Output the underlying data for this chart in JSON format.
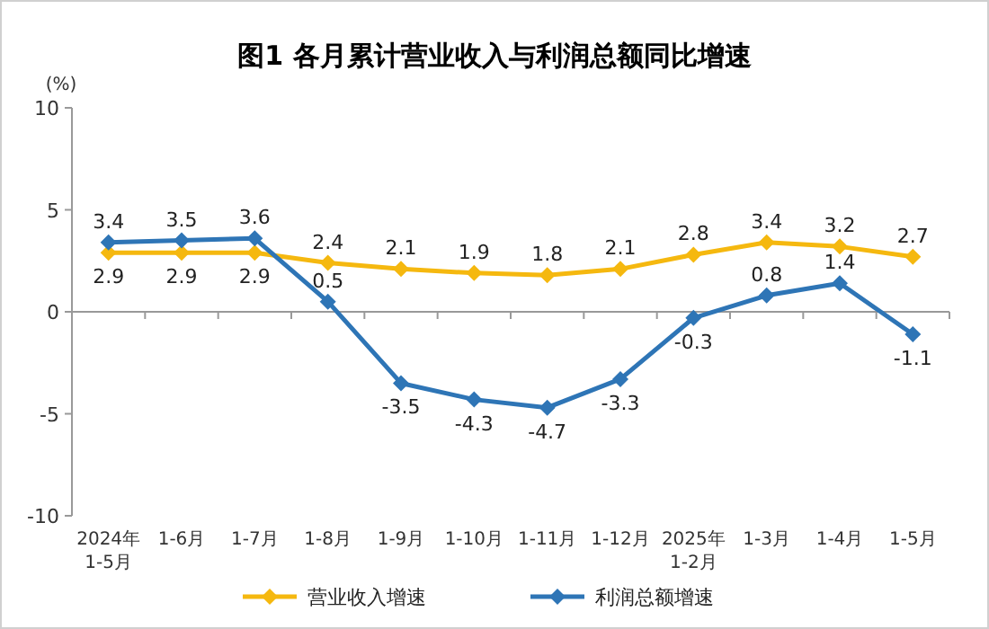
{
  "chart_data": {
    "type": "line",
    "title": "图1  各月累计营业收入与利润总额同比增速",
    "ylabel": "(%)",
    "categories": [
      "2024年\n1-5月",
      "1-6月",
      "1-7月",
      "1-8月",
      "1-9月",
      "1-10月",
      "1-11月",
      "1-12月",
      "2025年\n1-2月",
      "1-3月",
      "1-4月",
      "1-5月"
    ],
    "series": [
      {
        "name": "营业收入增速",
        "color": "#f5b80f",
        "values": [
          2.9,
          2.9,
          2.9,
          2.4,
          2.1,
          1.9,
          1.8,
          2.1,
          2.8,
          3.4,
          3.2,
          2.7
        ]
      },
      {
        "name": "利润总额增速",
        "color": "#2e75b6",
        "values": [
          3.4,
          3.5,
          3.6,
          0.5,
          -3.5,
          -4.3,
          -4.7,
          -3.3,
          -0.3,
          0.8,
          1.4,
          -1.1
        ]
      }
    ],
    "ylim": [
      -10,
      10
    ],
    "yticks": [
      -10,
      -5,
      0,
      5,
      10
    ],
    "data_labels": true,
    "legend": "bottom",
    "marker": "diamond"
  }
}
